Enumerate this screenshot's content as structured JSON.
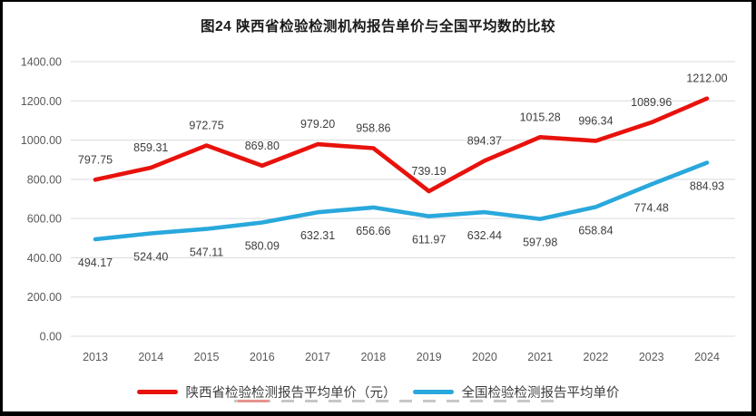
{
  "chart_data": {
    "type": "line",
    "title": "图24 陕西省检验检测机构报告单价与全国平均数的比较",
    "categories": [
      "2013",
      "2014",
      "2015",
      "2016",
      "2017",
      "2018",
      "2019",
      "2020",
      "2021",
      "2022",
      "2023",
      "2024"
    ],
    "series": [
      {
        "name": "陕西省检验检测报告平均单价（元）",
        "color": "#e8120c",
        "values": [
          797.75,
          859.31,
          972.75,
          869.8,
          979.2,
          958.86,
          739.19,
          894.37,
          1015.28,
          996.34,
          1089.96,
          1212.0
        ],
        "data_labels": [
          "797.75",
          "859.31",
          "972.75",
          "869.80",
          "979.20",
          "958.86",
          "739.19",
          "894.37",
          "1015.28",
          "996.34",
          "1089.96",
          "1212.00"
        ],
        "label_position": "above"
      },
      {
        "name": "全国检验检测报告平均单价",
        "color": "#29a8dc",
        "values": [
          494.17,
          524.4,
          547.11,
          580.09,
          632.31,
          656.66,
          611.97,
          632.44,
          597.98,
          658.84,
          774.48,
          884.93
        ],
        "data_labels": [
          "494.17",
          "524.40",
          "547.11",
          "580.09",
          "632.31",
          "656.66",
          "611.97",
          "632.44",
          "597.98",
          "658.84",
          "774.48",
          "884.93"
        ],
        "label_position": "below"
      }
    ],
    "ylim": [
      0,
      1400
    ],
    "y_tick_step": 200,
    "y_tick_labels": [
      "0.00",
      "200.00",
      "400.00",
      "600.00",
      "800.00",
      "1000.00",
      "1200.00",
      "1400.00"
    ],
    "grid": "horizontal-gridlines-only",
    "legend_position": "bottom"
  },
  "styles": {
    "background_color": "#ffffff",
    "frame_border_color": "#000000",
    "gridline_color": "#d9d9d9",
    "axis_tick_text_color": "#595959",
    "data_label_text_color": "#3d3d3d",
    "title_text_color": "#1a1a1a",
    "legend_text_color": "#3d3d3d",
    "series_red_color": "#e8120c",
    "series_blue_color": "#29a8dc"
  }
}
